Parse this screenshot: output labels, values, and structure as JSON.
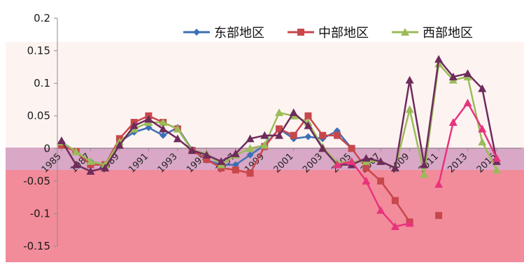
{
  "chart_data": {
    "type": "line",
    "title": "",
    "xlabel": "",
    "ylabel": "",
    "ylim": [
      -0.15,
      0.2
    ],
    "yticks": [
      0.2,
      0.15,
      0.1,
      0.05,
      0,
      -0.05,
      -0.1,
      -0.15
    ],
    "ytick_labels": [
      "0.2",
      "0.15",
      "0.1",
      "0.05",
      "0",
      "-0.05",
      "-0.1",
      "-0.15"
    ],
    "x": [
      1985,
      1986,
      1987,
      1988,
      1989,
      1990,
      1991,
      1992,
      1993,
      1994,
      1995,
      1996,
      1997,
      1998,
      1999,
      2000,
      2001,
      2002,
      2003,
      2004,
      2005,
      2006,
      2007,
      2008,
      2009,
      2010,
      2011,
      2012,
      2013,
      2014,
      2015
    ],
    "xtick_labels": [
      "1985",
      "1987",
      "1989",
      "1991",
      "1993",
      "1995",
      "1997",
      "1999",
      "2001",
      "2003",
      "2005",
      "2007",
      "2009",
      "2011",
      "2013",
      "2015"
    ],
    "legend_position": "top",
    "grid": false,
    "series": [
      {
        "name": "东部地区",
        "color": "#3d6fb5",
        "marker": "diamond",
        "values": [
          0.01,
          -0.005,
          -0.02,
          -0.025,
          0.01,
          0.025,
          0.032,
          0.02,
          0.032,
          -0.002,
          -0.018,
          -0.025,
          -0.025,
          -0.01,
          0.005,
          0.03,
          0.015,
          0.018,
          0.015,
          0.027,
          0.0,
          null,
          null,
          null,
          null,
          null,
          null,
          null,
          null,
          null,
          null
        ]
      },
      {
        "name": "中部地区",
        "color": "#c8474b",
        "marker": "square",
        "values": [
          0.005,
          -0.005,
          -0.025,
          -0.025,
          0.015,
          0.04,
          0.05,
          0.04,
          0.03,
          -0.003,
          -0.017,
          -0.03,
          -0.033,
          -0.038,
          0.003,
          0.03,
          0.02,
          0.05,
          0.02,
          0.02,
          0.0,
          -0.03,
          -0.05,
          -0.08,
          -0.113,
          null,
          -0.103,
          null,
          null,
          null,
          null
        ]
      },
      {
        "name": "西部地区",
        "color": "#9bbb59",
        "marker": "triangle",
        "values": [
          0.01,
          -0.005,
          -0.02,
          -0.025,
          0.01,
          0.03,
          0.04,
          0.04,
          0.03,
          -0.003,
          -0.008,
          -0.025,
          -0.01,
          0.0,
          0.005,
          0.055,
          0.05,
          0.04,
          0.002,
          -0.022,
          -0.02,
          -0.02,
          -0.02,
          -0.03,
          0.06,
          -0.04,
          0.13,
          0.105,
          0.11,
          0.01,
          -0.033
        ]
      },
      {
        "name": "",
        "color": "#6e2b5b",
        "marker": "triangle",
        "values": [
          0.012,
          -0.025,
          -0.035,
          -0.03,
          0.005,
          0.035,
          0.045,
          0.03,
          0.015,
          -0.003,
          -0.01,
          -0.02,
          -0.008,
          0.015,
          0.02,
          0.02,
          0.055,
          0.035,
          0.0,
          -0.025,
          -0.025,
          -0.015,
          -0.02,
          -0.03,
          0.105,
          -0.025,
          0.137,
          0.11,
          0.115,
          0.092,
          -0.02
        ]
      },
      {
        "name": "",
        "color": "#e8337d",
        "marker": "triangle",
        "values": [
          null,
          null,
          null,
          null,
          null,
          null,
          null,
          null,
          null,
          null,
          null,
          null,
          null,
          null,
          null,
          null,
          null,
          null,
          null,
          -0.025,
          -0.02,
          -0.05,
          -0.095,
          -0.12,
          -0.115,
          null,
          -0.055,
          0.04,
          0.07,
          0.03,
          -0.015
        ]
      }
    ]
  }
}
